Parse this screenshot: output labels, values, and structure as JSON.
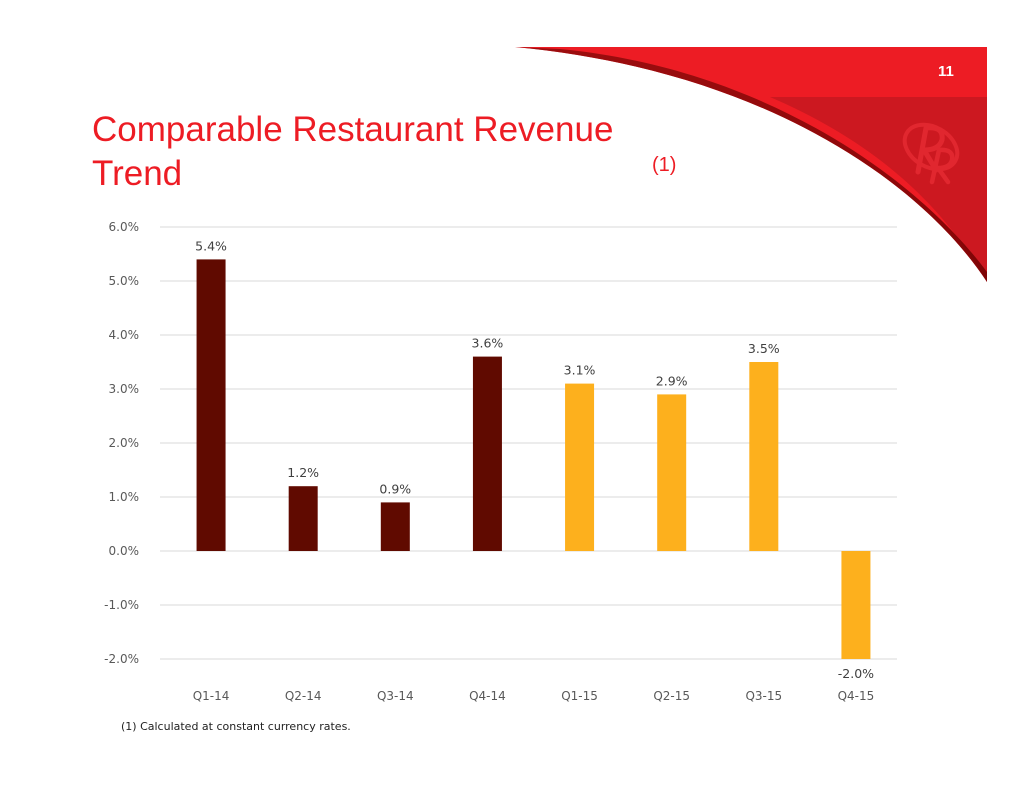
{
  "slide": {
    "number": "11",
    "title_main": "Comparable Restaurant Revenue Trend",
    "title_sup": "(1)",
    "footnote": "(1) Calculated at constant currency rates.",
    "logo_text": "RR",
    "colors": {
      "brand_red": "#ED1C24",
      "dark_red": "#CC1820"
    }
  },
  "chart_data": {
    "type": "bar",
    "title": "",
    "xlabel": "",
    "ylabel": "",
    "categories": [
      "Q1-14",
      "Q2-14",
      "Q3-14",
      "Q4-14",
      "Q1-15",
      "Q2-15",
      "Q3-15",
      "Q4-15"
    ],
    "values": [
      5.4,
      1.2,
      0.9,
      3.6,
      3.1,
      2.9,
      3.5,
      -2.0
    ],
    "data_labels": [
      "5.4%",
      "1.2%",
      "0.9%",
      "3.6%",
      "3.1%",
      "2.9%",
      "3.5%",
      "-2.0%"
    ],
    "bar_colors": [
      "#600A00",
      "#600A00",
      "#600A00",
      "#600A00",
      "#FDB01D",
      "#FDB01D",
      "#FDB01D",
      "#FDB01D"
    ],
    "ylim": [
      -2.0,
      6.0
    ],
    "yticks": [
      6.0,
      5.0,
      4.0,
      3.0,
      2.0,
      1.0,
      0.0,
      -1.0,
      -2.0
    ],
    "ytick_labels": [
      "6.0%",
      "5.0%",
      "4.0%",
      "3.0%",
      "2.0%",
      "1.0%",
      "0.0%",
      "-1.0%",
      "-2.0%"
    ],
    "grid": true,
    "legend": "none"
  }
}
